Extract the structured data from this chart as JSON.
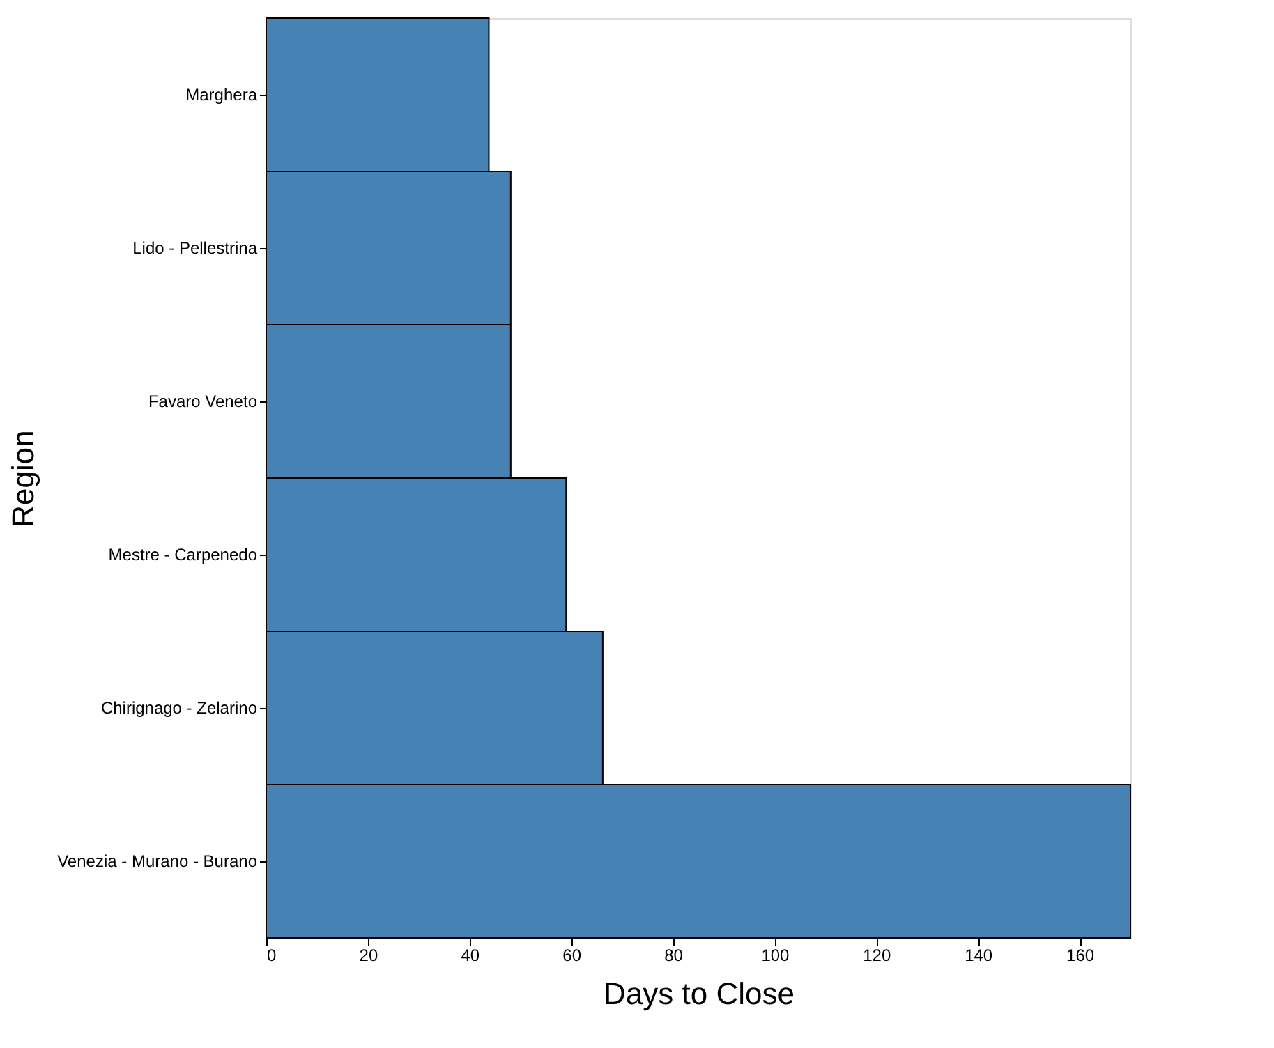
{
  "chart_data": {
    "type": "bar",
    "orientation": "horizontal",
    "xlabel": "Days to Close",
    "ylabel": "Region",
    "categories": [
      "Marghera",
      "Lido - Pellestrina",
      "Favaro Veneto",
      "Mestre - Carpenedo",
      "Chirignago - Zelarino",
      "Venezia - Murano - Burano"
    ],
    "values": [
      43.8,
      48.1,
      48.1,
      59,
      66.2,
      170
    ],
    "color": "#4682b4",
    "xlim": [
      0,
      170
    ],
    "xticks": [
      0,
      20,
      40,
      60,
      80,
      100,
      120,
      140,
      160
    ],
    "grid": false
  }
}
